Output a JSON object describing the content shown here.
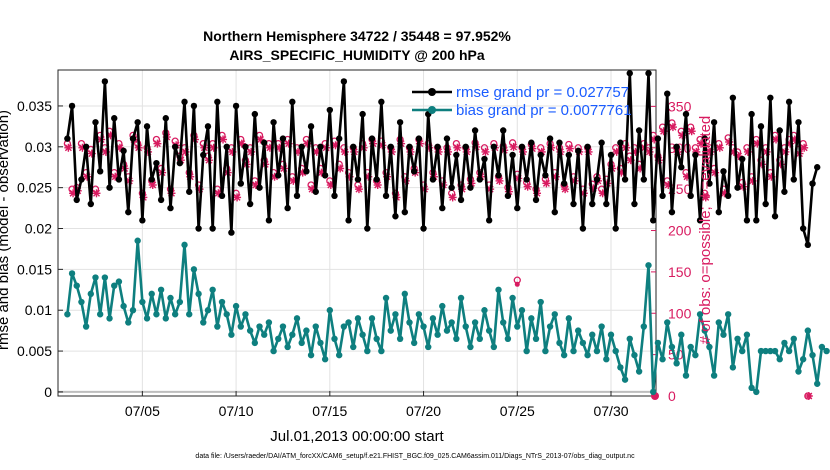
{
  "chart_data": {
    "type": "line",
    "title_line1": "Northern Hemisphere 34722 / 35448 = 97.952%",
    "title_line2": "AIRS_SPECIFIC_HUMIDITY @ 200 hPa",
    "xlabel": "Jul.01,2013 00:00:00 start",
    "ylabel_left": "rmse and bias (model - observation)",
    "ylabel_right": "# of obs: o=possible; ∗=evaluated",
    "footnote": "data file: /Users/raeder/DAI/ATM_forcXX/CAM6_setup/f.e21.FHIST_BGC.f09_025.CAM6assim.011/Diags_NTrS_2013-07/obs_diag_output.nc",
    "x_range_days": [
      0.5,
      32.4
    ],
    "x_ticks": [
      {
        "day": 5,
        "label": "07/05"
      },
      {
        "day": 10,
        "label": "07/10"
      },
      {
        "day": 15,
        "label": "07/15"
      },
      {
        "day": 20,
        "label": "07/20"
      },
      {
        "day": 25,
        "label": "07/25"
      },
      {
        "day": 30,
        "label": "07/30"
      }
    ],
    "ylim_left": [
      -0.0005,
      0.0394
    ],
    "yticks_left": [
      {
        "v": 0,
        "label": "0"
      },
      {
        "v": 0.005,
        "label": "0.005"
      },
      {
        "v": 0.01,
        "label": "0.01"
      },
      {
        "v": 0.015,
        "label": "0.015"
      },
      {
        "v": 0.02,
        "label": "0.02"
      },
      {
        "v": 0.025,
        "label": "0.025"
      },
      {
        "v": 0.03,
        "label": "0.03"
      },
      {
        "v": 0.035,
        "label": "0.035"
      }
    ],
    "ylim_right": [
      0,
      394
    ],
    "yticks_right": [
      {
        "v": 0,
        "label": "0"
      },
      {
        "v": 50,
        "label": "50"
      },
      {
        "v": 100,
        "label": "100"
      },
      {
        "v": 150,
        "label": "150"
      },
      {
        "v": 200,
        "label": "200"
      },
      {
        "v": 250,
        "label": "250"
      },
      {
        "v": 300,
        "label": "300"
      },
      {
        "v": 350,
        "label": "350"
      }
    ],
    "series": [
      {
        "name": "rmse grand pr = 0.027757",
        "color": "#000000",
        "x_start": 1.0,
        "x_step": 0.25,
        "values": [
          0.031,
          0.035,
          0.0235,
          0.026,
          0.03,
          0.023,
          0.033,
          0.027,
          0.038,
          0.025,
          0.0335,
          0.026,
          0.0295,
          0.022,
          0.031,
          0.033,
          0.021,
          0.0325,
          0.026,
          0.028,
          0.0235,
          0.0335,
          0.0225,
          0.03,
          0.028,
          0.0355,
          0.0245,
          0.035,
          0.02,
          0.029,
          0.0325,
          0.02,
          0.0355,
          0.024,
          0.03,
          0.0195,
          0.035,
          0.0255,
          0.03,
          0.023,
          0.034,
          0.025,
          0.0305,
          0.021,
          0.033,
          0.0265,
          0.031,
          0.0225,
          0.0355,
          0.024,
          0.03,
          0.027,
          0.0325,
          0.0245,
          0.03,
          0.0265,
          0.0345,
          0.024,
          0.031,
          0.038,
          0.021,
          0.03,
          0.026,
          0.034,
          0.02,
          0.031,
          0.026,
          0.0355,
          0.024,
          0.03,
          0.0215,
          0.033,
          0.022,
          0.03,
          0.027,
          0.031,
          0.02,
          0.034,
          0.026,
          0.03,
          0.0225,
          0.031,
          0.025,
          0.029,
          0.0235,
          0.03,
          0.025,
          0.032,
          0.026,
          0.0285,
          0.021,
          0.03,
          0.0265,
          0.032,
          0.024,
          0.029,
          0.0225,
          0.03,
          0.026,
          0.0305,
          0.0235,
          0.029,
          0.0265,
          0.031,
          0.022,
          0.0305,
          0.0255,
          0.029,
          0.023,
          0.0295,
          0.02,
          0.03,
          0.023,
          0.026,
          0.0305,
          0.023,
          0.029,
          0.02,
          0.0305,
          0.026,
          0.039,
          0.023,
          0.032,
          0.026,
          0.039,
          0.021,
          0.031,
          0.024,
          0.0365,
          0.022,
          0.03,
          0.0275,
          0.034,
          0.024,
          0.029,
          0.021,
          0.031,
          0.0255,
          0.033,
          0.022,
          0.027,
          0.024,
          0.036,
          0.025,
          0.0285,
          0.021,
          0.034,
          0.021,
          0.0325,
          0.023,
          0.036,
          0.0215,
          0.032,
          0.0245,
          0.0355,
          0.026,
          0.033,
          0.02,
          0.018,
          0.0255,
          0.0275
        ]
      },
      {
        "name": "bias grand pr = 0.0077761",
        "color": "#0e7f7f",
        "x_start": 1.0,
        "x_step": 0.25,
        "values": [
          0.0095,
          0.0145,
          0.013,
          0.011,
          0.008,
          0.012,
          0.014,
          0.0095,
          0.014,
          0.009,
          0.013,
          0.0135,
          0.0105,
          0.0085,
          0.01,
          0.0185,
          0.011,
          0.009,
          0.012,
          0.0095,
          0.0125,
          0.009,
          0.0115,
          0.0095,
          0.011,
          0.018,
          0.0095,
          0.015,
          0.012,
          0.0085,
          0.01,
          0.0125,
          0.008,
          0.011,
          0.0095,
          0.007,
          0.0105,
          0.008,
          0.0095,
          0.0075,
          0.006,
          0.008,
          0.007,
          0.0085,
          0.005,
          0.0065,
          0.008,
          0.0055,
          0.007,
          0.009,
          0.006,
          0.0075,
          0.0045,
          0.008,
          0.006,
          0.004,
          0.01,
          0.0065,
          0.0045,
          0.008,
          0.0085,
          0.0055,
          0.009,
          0.007,
          0.005,
          0.009,
          0.0065,
          0.005,
          0.0115,
          0.0075,
          0.0095,
          0.0065,
          0.012,
          0.0085,
          0.006,
          0.0095,
          0.008,
          0.0055,
          0.009,
          0.007,
          0.0105,
          0.0075,
          0.0085,
          0.0065,
          0.0115,
          0.008,
          0.0055,
          0.0085,
          0.0065,
          0.01,
          0.0075,
          0.0055,
          0.0125,
          0.0085,
          0.0065,
          0.0115,
          0.008,
          0.01,
          0.005,
          0.009,
          0.0065,
          0.011,
          0.005,
          0.008,
          0.0095,
          0.006,
          0.0045,
          0.009,
          0.005,
          0.0075,
          0.006,
          0.0045,
          0.007,
          0.005,
          0.008,
          0.004,
          0.007,
          0.005,
          0.003,
          0.0015,
          0.0065,
          0.0045,
          0.0025,
          0.008,
          0.0155,
          0.0,
          0.006,
          0.004,
          0.0085,
          0.0055,
          0.0035,
          0.007,
          0.002,
          0.0055,
          0.0045,
          0.0095,
          0.0075,
          0.0055,
          0.002,
          0.0085,
          0.007,
          0.0095,
          0.003,
          0.0065,
          0.005,
          0.007,
          0.0005,
          0.0,
          0.005,
          0.005,
          0.005,
          0.005,
          0.004,
          0.006,
          0.005,
          0.0065,
          0.0025,
          0.004,
          0.0075,
          0.0045,
          0.001,
          0.0055,
          0.005
        ]
      }
    ],
    "obs_count": {
      "x_start": 1.0,
      "x_step": 0.25,
      "possible": [
        305,
        250,
        252,
        305,
        270,
        298,
        250,
        315,
        300,
        320,
        270,
        305,
        280,
        265,
        315,
        305,
        245,
        300,
        260,
        310,
        275,
        318,
        250,
        308,
        290,
        300,
        270,
        315,
        255,
        305,
        290,
        305,
        250,
        315,
        275,
        300,
        245,
        310,
        285,
        300,
        260,
        315,
        285,
        305,
        270,
        305,
        280,
        310,
        265,
        300,
        275,
        310,
        255,
        300,
        275,
        305,
        260,
        308,
        280,
        300,
        270,
        300,
        255,
        305,
        270,
        310,
        260,
        308,
        270,
        300,
        245,
        310,
        265,
        300,
        275,
        310,
        255,
        305,
        270,
        300,
        260,
        300,
        245,
        305,
        255,
        300,
        262,
        306,
        270,
        300,
        255,
        305,
        265,
        302,
        252,
        306,
        268,
        300,
        258,
        304,
        250,
        300,
        262,
        305,
        270,
        300,
        255,
        304,
        265,
        300,
        250,
        300,
        256,
        265,
        250,
        262,
        280,
        300,
        275,
        305,
        290,
        300,
        280,
        305,
        300,
        315,
        290,
        325,
        260,
        330,
        300,
        320,
        270,
        325,
        300,
        310,
        245,
        300,
        275,
        305,
        250,
        312,
        300,
        295,
        258,
        300,
        265,
        310,
        285,
        300,
        270,
        315,
        285,
        300,
        310,
        315,
        298,
        305,
        0
      ],
      "evaluated": [
        300,
        245,
        248,
        300,
        265,
        293,
        245,
        310,
        295,
        315,
        265,
        300,
        275,
        260,
        310,
        300,
        240,
        295,
        255,
        305,
        270,
        313,
        245,
        303,
        285,
        295,
        265,
        310,
        250,
        300,
        285,
        300,
        245,
        310,
        270,
        295,
        240,
        305,
        280,
        295,
        255,
        310,
        280,
        300,
        265,
        300,
        275,
        305,
        260,
        295,
        270,
        305,
        250,
        295,
        270,
        300,
        255,
        303,
        275,
        295,
        265,
        295,
        250,
        300,
        265,
        305,
        255,
        303,
        265,
        295,
        240,
        305,
        260,
        295,
        270,
        305,
        250,
        300,
        265,
        295,
        255,
        295,
        240,
        300,
        250,
        295,
        257,
        301,
        265,
        295,
        250,
        300,
        260,
        297,
        247,
        301,
        263,
        295,
        253,
        299,
        245,
        295,
        257,
        300,
        265,
        295,
        250,
        299,
        260,
        295,
        245,
        295,
        251,
        260,
        245,
        257,
        275,
        295,
        270,
        300,
        285,
        295,
        275,
        300,
        295,
        310,
        285,
        320,
        255,
        325,
        295,
        315,
        265,
        320,
        295,
        305,
        240,
        295,
        270,
        300,
        245,
        307,
        295,
        290,
        253,
        295,
        260,
        305,
        280,
        295,
        265,
        310,
        280,
        295,
        305,
        310,
        293,
        300,
        0
      ]
    },
    "extra_points": {
      "possible_day": 25.0,
      "possible_count": 140,
      "evaluated_day": 25.0,
      "evaluated_count": 135
    },
    "colors": {
      "rmse": "#000000",
      "bias": "#0e7f7f",
      "obs": "#d81b60",
      "legend_text": "#1a5cff",
      "grid": "#e2e2e2"
    }
  }
}
